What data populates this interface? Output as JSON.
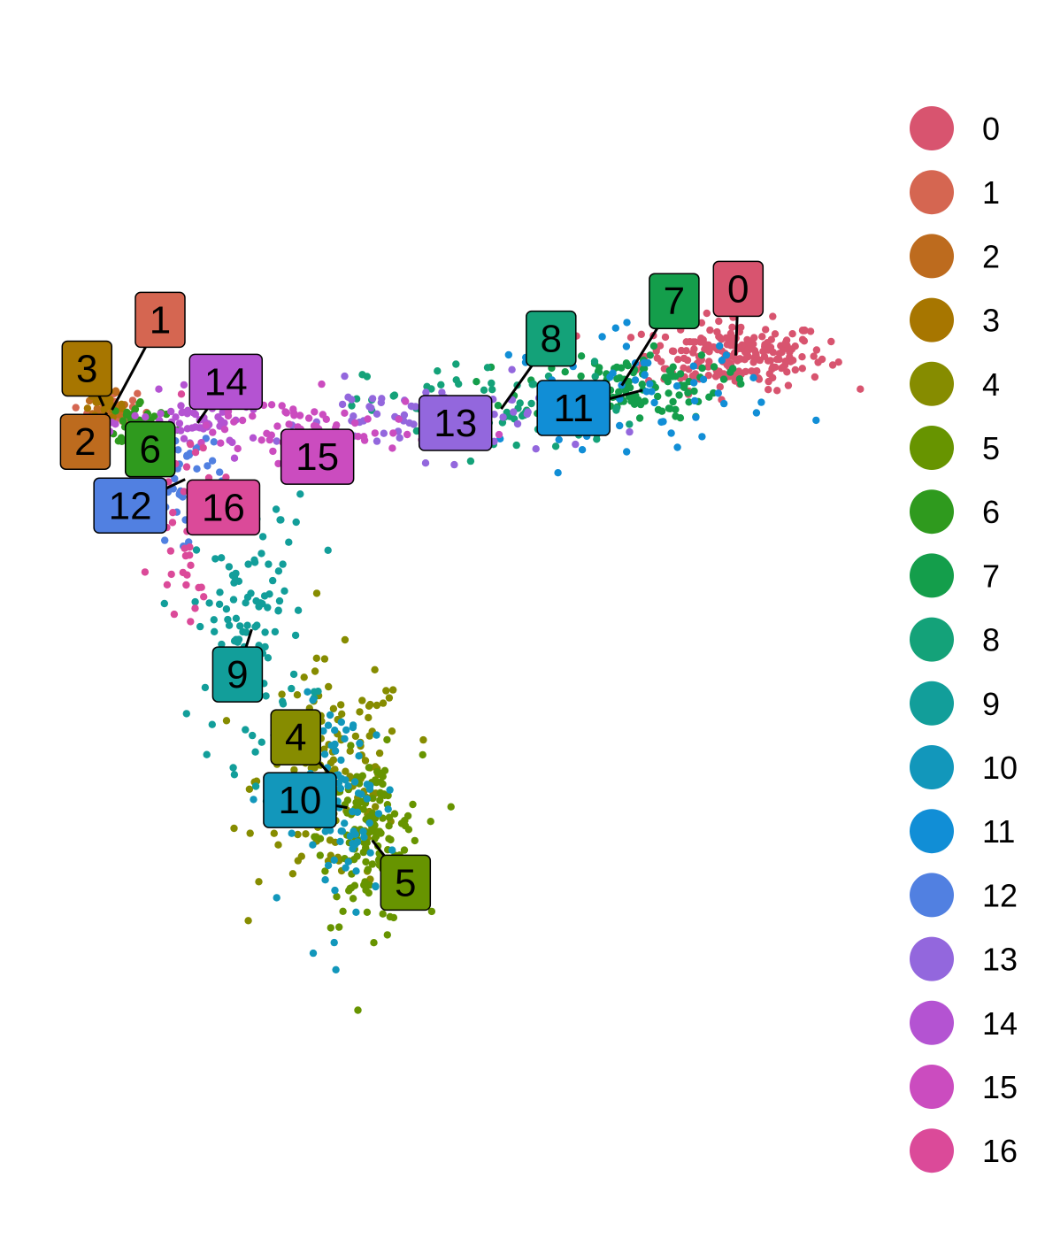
{
  "chart_data": {
    "type": "scatter",
    "title": "",
    "xlabel": "",
    "ylabel": "",
    "axes_visible": false,
    "grid": false,
    "legend_position": "right",
    "point_spread": 0.05,
    "ylim": [
      0,
      1
    ],
    "xlim": [
      0,
      1
    ],
    "clusters": [
      {
        "id": "0",
        "color": "#D8546F",
        "count": 220,
        "center": [
          0.842,
          0.772
        ],
        "spread": [
          0.055,
          0.018
        ],
        "label_at": [
          0.845,
          0.843
        ]
      },
      {
        "id": "1",
        "color": "#D56651",
        "count": 40,
        "center": [
          0.092,
          0.714
        ],
        "spread": [
          0.015,
          0.01
        ],
        "label_at": [
          0.15,
          0.81
        ]
      },
      {
        "id": "2",
        "color": "#BD6B1E",
        "count": 35,
        "center": [
          0.086,
          0.711
        ],
        "spread": [
          0.012,
          0.01
        ],
        "label_at": [
          0.06,
          0.68
        ]
      },
      {
        "id": "3",
        "color": "#A77600",
        "count": 30,
        "center": [
          0.082,
          0.718
        ],
        "spread": [
          0.012,
          0.008
        ],
        "label_at": [
          0.062,
          0.758
        ]
      },
      {
        "id": "4",
        "color": "#868C00",
        "count": 160,
        "center": [
          0.358,
          0.322
        ],
        "spread": [
          0.045,
          0.06
        ],
        "label_at": [
          0.313,
          0.365
        ]
      },
      {
        "id": "5",
        "color": "#679400",
        "count": 150,
        "center": [
          0.405,
          0.255
        ],
        "spread": [
          0.03,
          0.045
        ],
        "label_at": [
          0.445,
          0.21
        ]
      },
      {
        "id": "6",
        "color": "#2F9A1E",
        "count": 45,
        "center": [
          0.128,
          0.7
        ],
        "spread": [
          0.02,
          0.012
        ],
        "label_at": [
          0.138,
          0.672
        ]
      },
      {
        "id": "7",
        "color": "#149E4B",
        "count": 120,
        "center": [
          0.705,
          0.74
        ],
        "spread": [
          0.06,
          0.018
        ],
        "label_at": [
          0.768,
          0.83
        ]
      },
      {
        "id": "8",
        "color": "#14A279",
        "count": 80,
        "center": [
          0.56,
          0.715
        ],
        "spread": [
          0.08,
          0.025
        ],
        "label_at": [
          0.62,
          0.79
        ]
      },
      {
        "id": "9",
        "color": "#129E9A",
        "count": 110,
        "center": [
          0.26,
          0.48
        ],
        "spread": [
          0.035,
          0.07
        ],
        "label_at": [
          0.243,
          0.432
        ]
      },
      {
        "id": "10",
        "color": "#1297BB",
        "count": 90,
        "center": [
          0.375,
          0.29
        ],
        "spread": [
          0.03,
          0.055
        ],
        "label_at": [
          0.318,
          0.298
        ]
      },
      {
        "id": "11",
        "color": "#118ED6",
        "count": 55,
        "center": [
          0.73,
          0.735
        ],
        "spread": [
          0.08,
          0.03
        ],
        "label_at": [
          0.647,
          0.716
        ]
      },
      {
        "id": "12",
        "color": "#5180E1",
        "count": 45,
        "center": [
          0.18,
          0.64
        ],
        "spread": [
          0.022,
          0.03
        ],
        "label_at": [
          0.114,
          0.612
        ]
      },
      {
        "id": "13",
        "color": "#9367DD",
        "count": 70,
        "center": [
          0.47,
          0.705
        ],
        "spread": [
          0.09,
          0.02
        ],
        "label_at": [
          0.505,
          0.7
        ]
      },
      {
        "id": "14",
        "color": "#B453D2",
        "count": 60,
        "center": [
          0.195,
          0.7
        ],
        "spread": [
          0.04,
          0.015
        ],
        "label_at": [
          0.229,
          0.744
        ]
      },
      {
        "id": "15",
        "color": "#CB4CBF",
        "count": 70,
        "center": [
          0.32,
          0.695
        ],
        "spread": [
          0.08,
          0.018
        ],
        "label_at": [
          0.339,
          0.664
        ]
      },
      {
        "id": "16",
        "color": "#DB4A99",
        "count": 45,
        "center": [
          0.185,
          0.6
        ],
        "spread": [
          0.02,
          0.05
        ],
        "label_at": [
          0.226,
          0.61
        ]
      }
    ]
  }
}
